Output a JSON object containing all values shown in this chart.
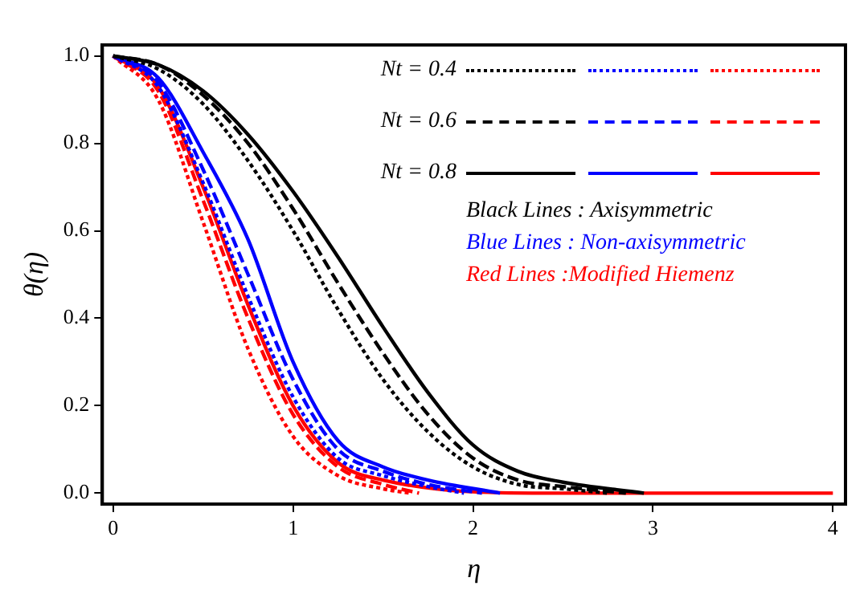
{
  "chart_data": {
    "type": "line",
    "xlabel": "η",
    "ylabel": "θ(η)",
    "xlim": [
      -0.06,
      4.07
    ],
    "xticks": [
      0,
      1,
      2,
      3,
      4
    ],
    "ylim": [
      -0.025,
      1.025
    ],
    "yticks": [
      {
        "value": 0,
        "label": "0.0"
      },
      {
        "value": 0.2,
        "label": "0.2"
      },
      {
        "value": 0.4,
        "label": "0.4"
      },
      {
        "value": 0.6,
        "label": "0.6"
      },
      {
        "value": 0.8,
        "label": "0.8"
      },
      {
        "value": 1,
        "label": "1.0"
      }
    ],
    "grid": false,
    "legend": "top right",
    "marker": "none",
    "series": [
      {
        "name": "Nt = 0.4",
        "color": "#000000",
        "line_style": "dotted",
        "x": [
          0,
          0.25,
          0.5,
          0.75,
          1,
          1.25,
          1.5,
          1.75,
          2,
          2.25,
          2.5,
          2.75
        ],
        "values": [
          1,
          0.97,
          0.89,
          0.76,
          0.6,
          0.42,
          0.26,
          0.14,
          0.06,
          0.02,
          0.01,
          0
        ]
      },
      {
        "name": "Nt = 0.6",
        "color": "#000000",
        "line_style": "dashed",
        "x": [
          0,
          0.25,
          0.5,
          0.75,
          1,
          1.25,
          1.5,
          1.75,
          2,
          2.25,
          2.5,
          2.85
        ],
        "values": [
          1,
          0.98,
          0.91,
          0.8,
          0.65,
          0.48,
          0.32,
          0.18,
          0.08,
          0.03,
          0.015,
          0
        ]
      },
      {
        "name": "Nt = 0.8",
        "color": "#000000",
        "line_style": "solid",
        "x": [
          0,
          0.25,
          0.5,
          0.75,
          1,
          1.25,
          1.5,
          1.75,
          2,
          2.25,
          2.5,
          2.95
        ],
        "values": [
          1,
          0.98,
          0.92,
          0.82,
          0.69,
          0.54,
          0.38,
          0.23,
          0.11,
          0.05,
          0.025,
          0
        ]
      },
      {
        "color": "#0000ff",
        "line_style": "dotted",
        "x": [
          0,
          0.25,
          0.5,
          0.75,
          1,
          1.25,
          1.5,
          1.75,
          1.95
        ],
        "values": [
          1,
          0.93,
          0.71,
          0.45,
          0.22,
          0.08,
          0.04,
          0.015,
          0
        ]
      },
      {
        "color": "#0000ff",
        "line_style": "dashed",
        "x": [
          0,
          0.25,
          0.5,
          0.75,
          1,
          1.25,
          1.5,
          1.75,
          2.05
        ],
        "values": [
          1,
          0.94,
          0.74,
          0.5,
          0.26,
          0.1,
          0.05,
          0.02,
          0
        ]
      },
      {
        "color": "#0000ff",
        "line_style": "solid",
        "x": [
          0,
          0.25,
          0.5,
          0.75,
          1,
          1.25,
          1.5,
          1.75,
          2.15
        ],
        "values": [
          1,
          0.95,
          0.78,
          0.58,
          0.3,
          0.12,
          0.06,
          0.03,
          0
        ]
      },
      {
        "color": "#ff0000",
        "line_style": "dotted",
        "x": [
          0,
          0.25,
          0.5,
          0.75,
          1,
          1.25,
          1.5,
          1.65
        ],
        "values": [
          1,
          0.9,
          0.62,
          0.33,
          0.13,
          0.04,
          0.01,
          0
        ]
      },
      {
        "color": "#ff0000",
        "line_style": "dashed",
        "x": [
          0,
          0.25,
          0.5,
          0.75,
          1,
          1.25,
          1.5,
          1.7
        ],
        "values": [
          1,
          0.92,
          0.67,
          0.4,
          0.18,
          0.06,
          0.02,
          0
        ]
      },
      {
        "color": "#ff0000",
        "line_style": "solid",
        "x": [
          0,
          0.25,
          0.5,
          0.75,
          1,
          1.25,
          1.5,
          2.4,
          4
        ],
        "values": [
          1,
          0.93,
          0.7,
          0.43,
          0.2,
          0.07,
          0.03,
          0,
          0
        ]
      }
    ],
    "annotations": [
      "Black Lines : Axisymmetric",
      "Blue Lines : Non-axisymmetric",
      "Red Lines :Modified Hiemenz"
    ]
  }
}
